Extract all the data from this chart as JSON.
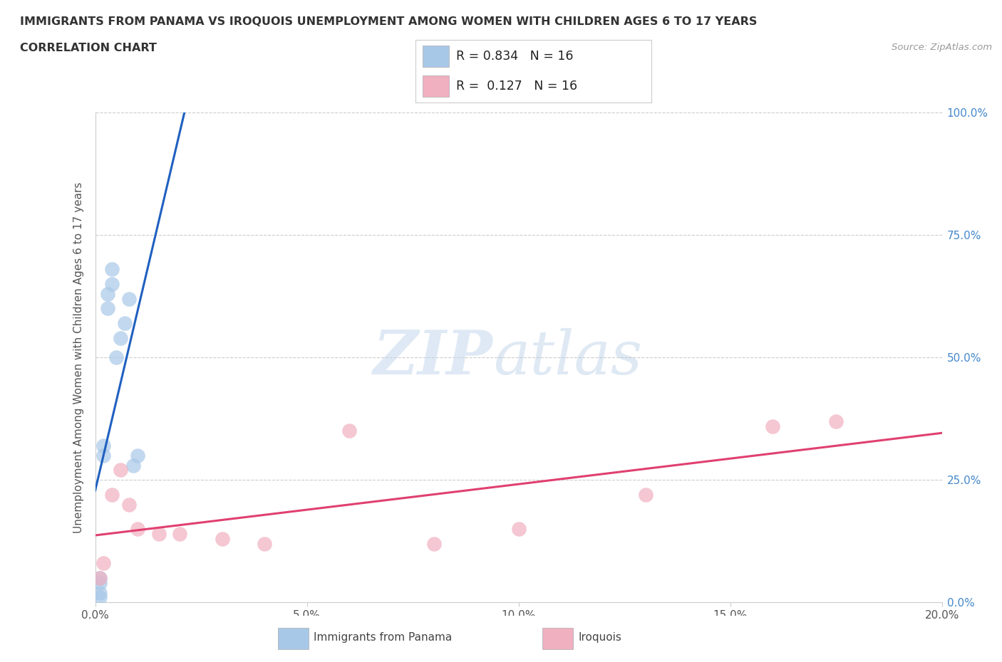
{
  "title": "IMMIGRANTS FROM PANAMA VS IROQUOIS UNEMPLOYMENT AMONG WOMEN WITH CHILDREN AGES 6 TO 17 YEARS",
  "subtitle": "CORRELATION CHART",
  "source": "Source: ZipAtlas.com",
  "ylabel": "Unemployment Among Women with Children Ages 6 to 17 years",
  "legend_label_1": "Immigrants from Panama",
  "legend_label_2": "Iroquois",
  "r1": "0.834",
  "n1": "16",
  "r2": "0.127",
  "n2": "16",
  "blue_color": "#a8c8e8",
  "pink_color": "#f0b0c0",
  "trend_blue": "#2060c0",
  "trend_pink": "#e04070",
  "xlim": [
    0.0,
    0.2
  ],
  "ylim": [
    0.0,
    1.0
  ],
  "blue_x": [
    0.001,
    0.001,
    0.001,
    0.001,
    0.002,
    0.002,
    0.003,
    0.003,
    0.004,
    0.004,
    0.005,
    0.006,
    0.007,
    0.008,
    0.009,
    0.01
  ],
  "blue_y": [
    0.01,
    0.02,
    0.04,
    0.05,
    0.3,
    0.32,
    0.6,
    0.63,
    0.65,
    0.68,
    0.5,
    0.54,
    0.57,
    0.62,
    0.28,
    0.3
  ],
  "pink_x": [
    0.001,
    0.002,
    0.004,
    0.006,
    0.008,
    0.01,
    0.015,
    0.02,
    0.03,
    0.04,
    0.06,
    0.08,
    0.1,
    0.13,
    0.16,
    0.175
  ],
  "pink_y": [
    0.05,
    0.08,
    0.22,
    0.27,
    0.2,
    0.15,
    0.14,
    0.14,
    0.13,
    0.12,
    0.35,
    0.12,
    0.15,
    0.22,
    0.36,
    0.37
  ],
  "watermark_zip": "ZIP",
  "watermark_atlas": "atlas",
  "bg_color": "#ffffff",
  "grid_color": "#cccccc",
  "title_color": "#333333",
  "right_axis_color": "#4488cc",
  "source_color": "#999999"
}
